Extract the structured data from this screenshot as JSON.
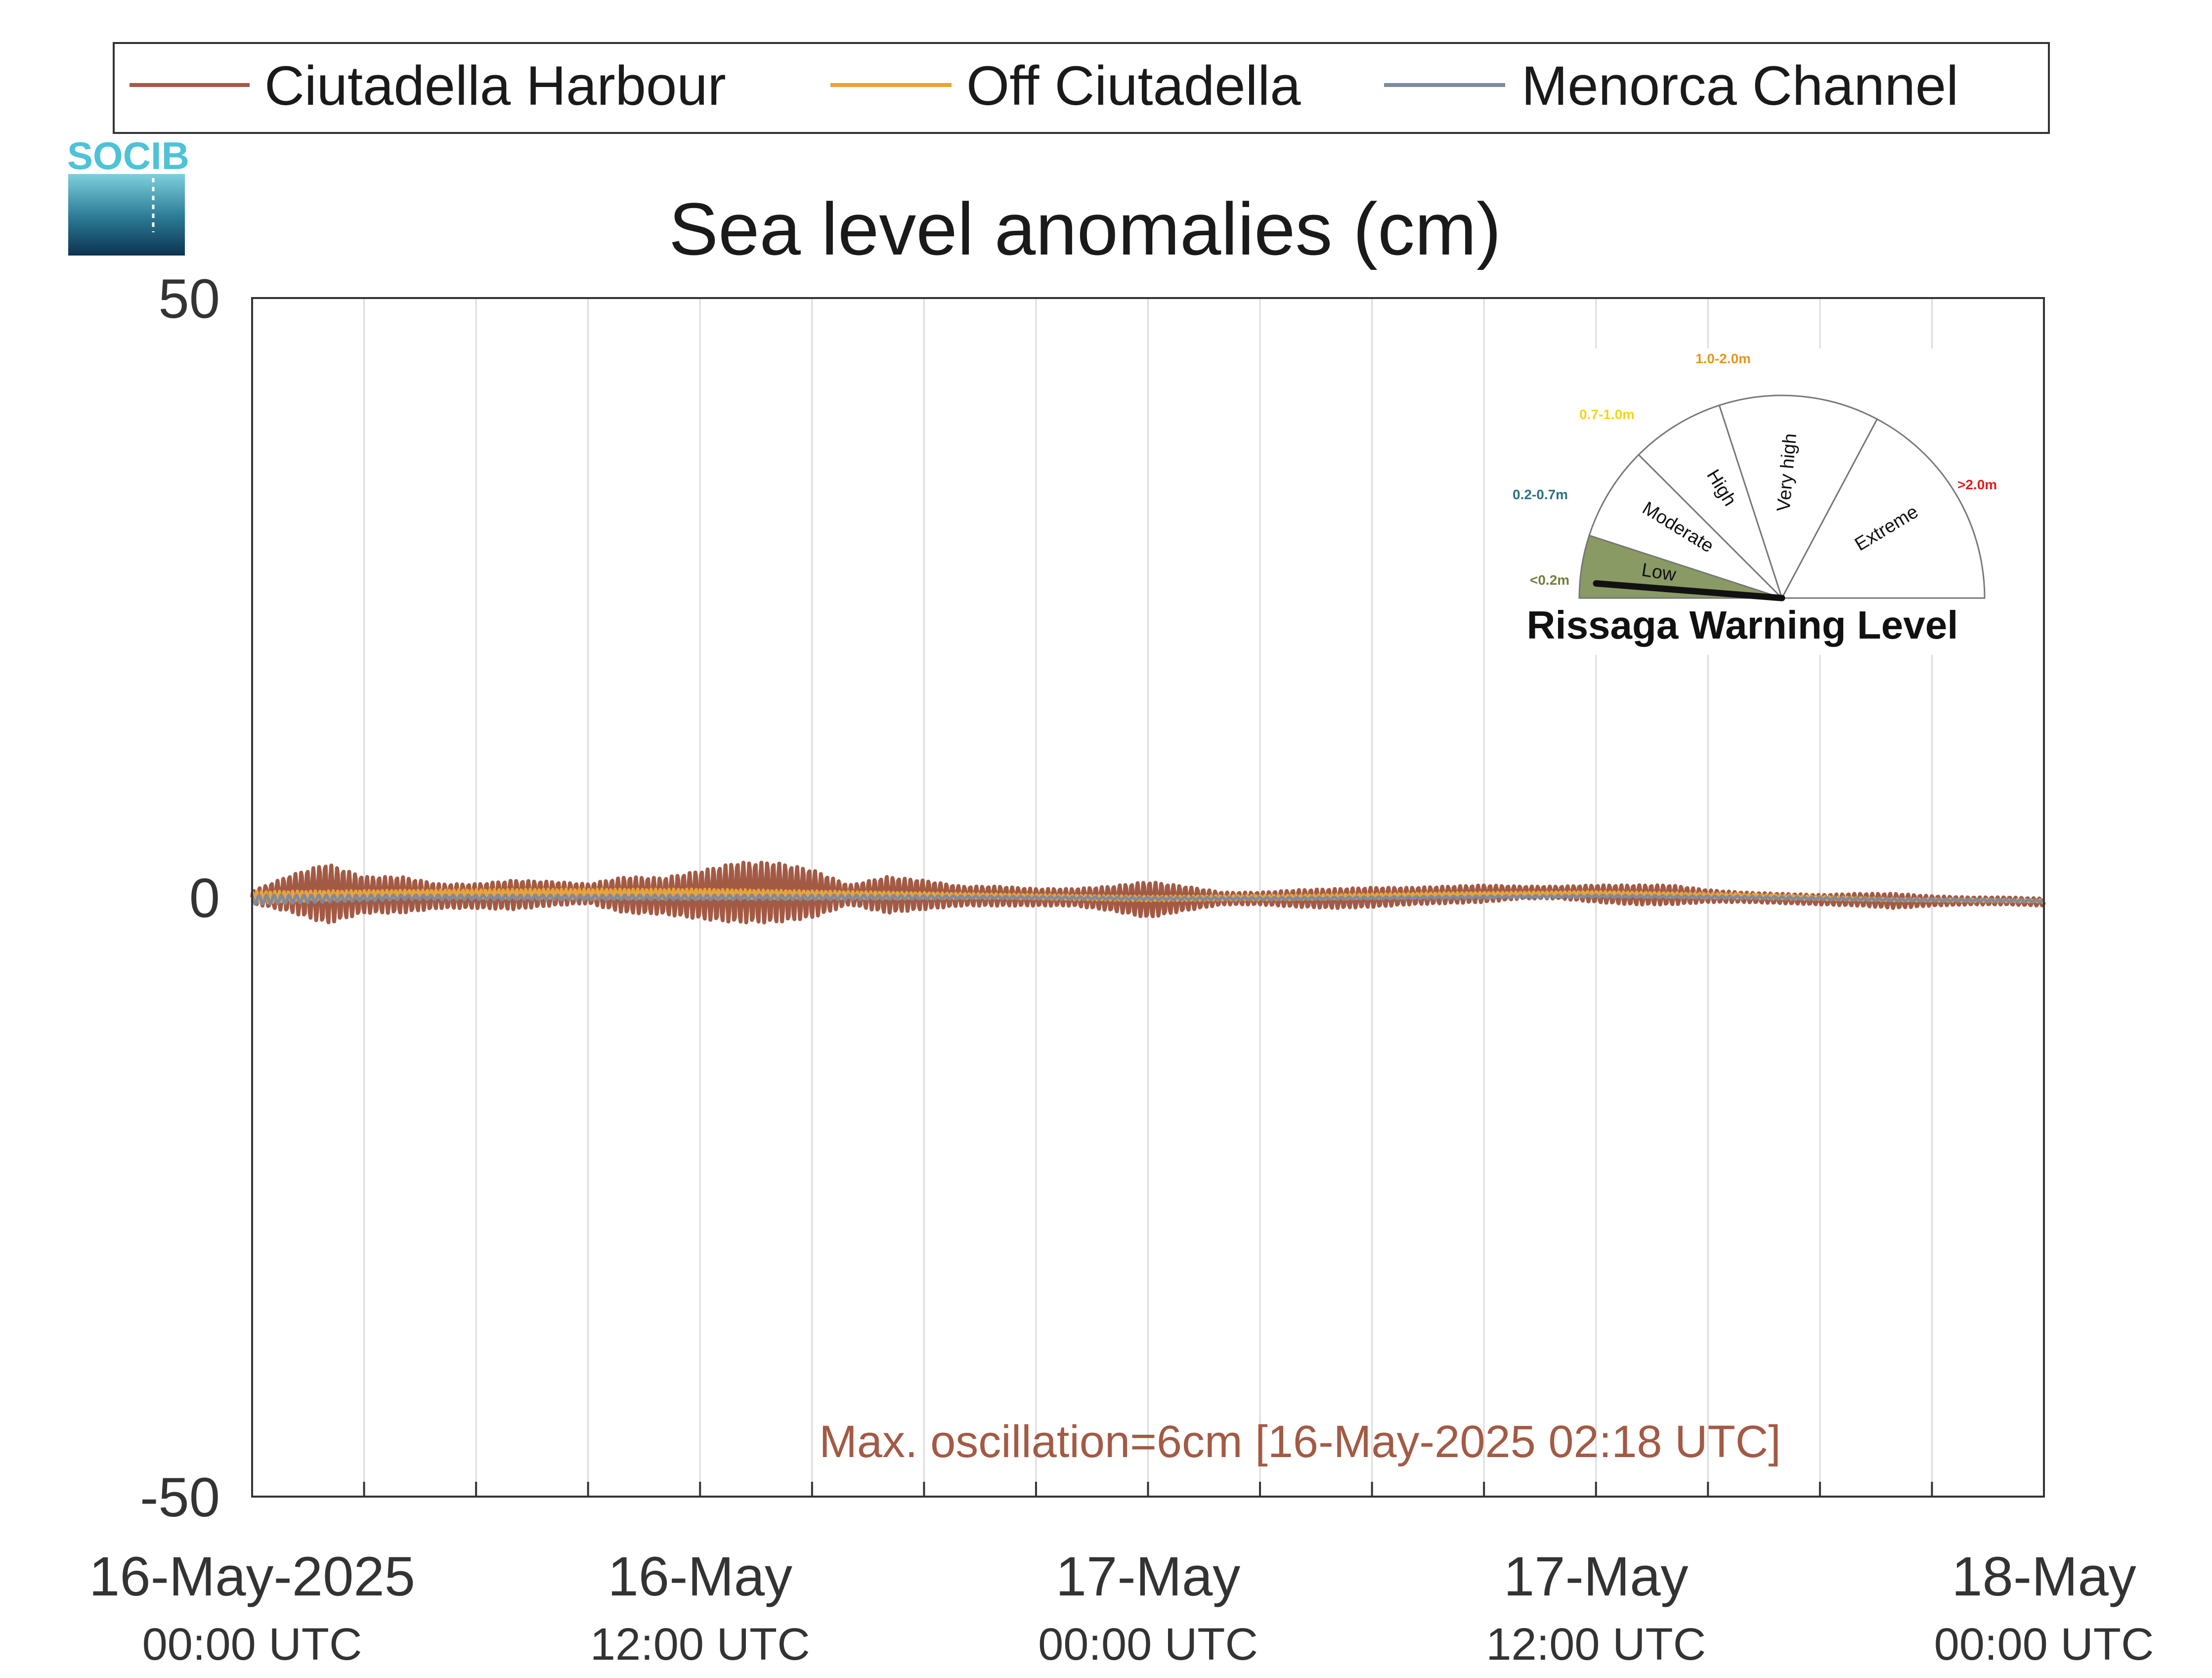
{
  "logo": {
    "text": "SOCIB",
    "color": "#4ec2d6"
  },
  "legend": [
    {
      "label": "Ciutadella Harbour",
      "color": "#a35a44"
    },
    {
      "label": "Off Ciutadella",
      "color": "#e8a33a"
    },
    {
      "label": "Menorca Channel",
      "color": "#7f8aa0"
    }
  ],
  "annotation": {
    "text": "Max. oscillation=6cm [16-May-2025 02:18 UTC]",
    "color": "#a35a44"
  },
  "gauge": {
    "title": "Rissaga Warning Level",
    "level": "Low",
    "sectors": [
      {
        "label": "Low",
        "range": "<0.2m",
        "range_color": "#6f7f3a",
        "fill": "#8a9a65"
      },
      {
        "label": "Moderate",
        "range": "0.2-0.7m",
        "range_color": "#2f6f86",
        "fill": "#ffffff"
      },
      {
        "label": "High",
        "range": "0.7-1.0m",
        "range_color": "#f2d41c",
        "fill": "#ffffff"
      },
      {
        "label": "Very high",
        "range": "1.0-2.0m",
        "range_color": "#e8961c",
        "fill": "#ffffff"
      },
      {
        "label": "Extreme",
        "range": ">2.0m",
        "range_color": "#e01c1c",
        "fill": "#ffffff"
      }
    ]
  },
  "chart_data": {
    "type": "line",
    "title": "Sea level anomalies (cm)",
    "xlabel": "",
    "ylabel": "",
    "ylim": [
      -50,
      50
    ],
    "yticks": [
      "50",
      "0",
      "-50"
    ],
    "xlim_hours": [
      0,
      48
    ],
    "xticks": [
      {
        "date": "16-May-2025",
        "time": "00:00 UTC"
      },
      {
        "date": "16-May",
        "time": "12:00 UTC"
      },
      {
        "date": "17-May",
        "time": "00:00 UTC"
      },
      {
        "date": "17-May",
        "time": "12:00 UTC"
      },
      {
        "date": "18-May",
        "time": "00:00 UTC"
      }
    ],
    "grid": true,
    "series": [
      {
        "name": "Ciutadella Harbour",
        "color": "#a35a44",
        "envelope_hours": [
          0,
          1,
          2,
          3,
          4,
          5,
          6,
          7,
          8,
          9,
          10,
          11,
          12,
          13,
          14,
          15,
          16,
          17,
          18,
          19,
          20,
          21,
          22,
          23,
          24,
          25,
          26,
          27,
          28,
          29,
          30,
          31,
          32,
          33,
          34,
          35,
          36,
          37,
          38,
          39,
          40,
          41,
          42,
          43,
          44,
          45,
          46,
          47,
          48
        ],
        "amplitude_cm": [
          0.5,
          1.5,
          2.5,
          1.5,
          1.5,
          1.0,
          1.0,
          1.2,
          1.0,
          0.8,
          1.5,
          1.5,
          2.0,
          2.5,
          2.5,
          2.0,
          0.8,
          1.5,
          1.2,
          0.8,
          0.8,
          0.7,
          0.7,
          1.0,
          1.5,
          1.0,
          0.5,
          0.5,
          0.7,
          0.8,
          0.8,
          0.7,
          0.7,
          0.7,
          0.5,
          0.5,
          0.7,
          0.8,
          0.8,
          0.5,
          0.4,
          0.4,
          0.4,
          0.5,
          0.6,
          0.4,
          0.3,
          0.3,
          0.3
        ],
        "mean_cm": [
          0.0,
          0.3,
          0.3,
          0.2,
          0.2,
          0.1,
          0.1,
          0.2,
          0.3,
          0.3,
          0.2,
          0.1,
          0.2,
          0.4,
          0.4,
          0.3,
          0.2,
          0.2,
          0.2,
          0.1,
          0.1,
          0.0,
          0.0,
          -0.1,
          -0.2,
          -0.1,
          -0.1,
          -0.1,
          -0.1,
          -0.1,
          0.0,
          0.1,
          0.2,
          0.3,
          0.4,
          0.4,
          0.3,
          0.2,
          0.2,
          0.1,
          0.0,
          -0.1,
          -0.2,
          -0.2,
          -0.3,
          -0.3,
          -0.3,
          -0.3,
          -0.4
        ]
      },
      {
        "name": "Off Ciutadella",
        "color": "#e8a33a",
        "envelope_hours": [
          0,
          4,
          8,
          12,
          16,
          20,
          24,
          28,
          32,
          36,
          40,
          44,
          48
        ],
        "amplitude_cm": [
          0.5,
          0.3,
          0.4,
          0.4,
          0.3,
          0.2,
          0.2,
          0.2,
          0.2,
          0.2,
          0.2,
          0.1,
          0.1
        ],
        "mean_cm": [
          0.0,
          0.3,
          0.3,
          0.3,
          0.2,
          0.1,
          -0.1,
          0.0,
          0.2,
          0.3,
          0.1,
          -0.2,
          -0.3
        ]
      },
      {
        "name": "Menorca Channel",
        "color": "#7f8aa0",
        "envelope_hours": [
          0,
          4,
          8,
          12,
          16,
          20,
          24,
          28,
          32,
          36,
          40,
          44,
          48
        ],
        "amplitude_cm": [
          0.4,
          0.2,
          0.2,
          0.2,
          0.2,
          0.1,
          0.1,
          0.1,
          0.1,
          0.1,
          0.1,
          0.1,
          0.1
        ],
        "mean_cm": [
          -0.2,
          0.0,
          0.0,
          0.0,
          0.0,
          0.0,
          -0.1,
          -0.1,
          0.0,
          0.1,
          0.0,
          -0.2,
          -0.3
        ]
      }
    ]
  }
}
